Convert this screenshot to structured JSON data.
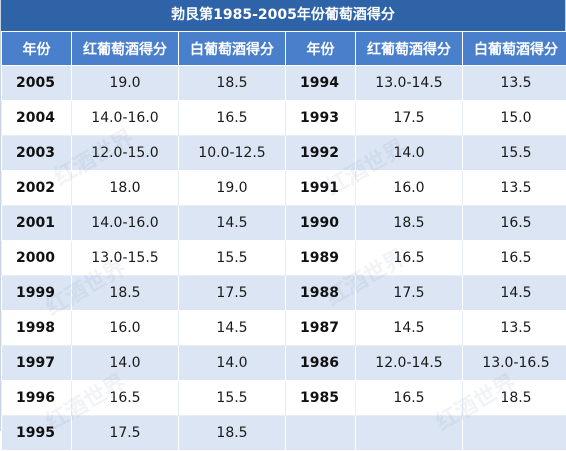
{
  "title": "勃艮第1985-2005年份葡萄酒得分",
  "headers": {
    "year": "年份",
    "red": "红葡萄酒得分",
    "white": "白葡萄酒得分"
  },
  "rows": [
    {
      "left": {
        "year": "2005",
        "red": "19.0",
        "white": "18.5"
      },
      "right": {
        "year": "1994",
        "red": "13.0-14.5",
        "white": "13.5"
      }
    },
    {
      "left": {
        "year": "2004",
        "red": "14.0-16.0",
        "white": "16.5"
      },
      "right": {
        "year": "1993",
        "red": "17.5",
        "white": "15.0"
      }
    },
    {
      "left": {
        "year": "2003",
        "red": "12.0-15.0",
        "white": "10.0-12.5"
      },
      "right": {
        "year": "1992",
        "red": "14.0",
        "white": "15.5"
      }
    },
    {
      "left": {
        "year": "2002",
        "red": "18.0",
        "white": "19.0"
      },
      "right": {
        "year": "1991",
        "red": "16.0",
        "white": "13.5"
      }
    },
    {
      "left": {
        "year": "2001",
        "red": "14.0-16.0",
        "white": "14.5"
      },
      "right": {
        "year": "1990",
        "red": "18.5",
        "white": "16.5"
      }
    },
    {
      "left": {
        "year": "2000",
        "red": "13.0-15.5",
        "white": "15.5"
      },
      "right": {
        "year": "1989",
        "red": "16.5",
        "white": "16.5"
      }
    },
    {
      "left": {
        "year": "1999",
        "red": "18.5",
        "white": "17.5"
      },
      "right": {
        "year": "1988",
        "red": "17.5",
        "white": "14.5"
      }
    },
    {
      "left": {
        "year": "1998",
        "red": "16.0",
        "white": "14.5"
      },
      "right": {
        "year": "1987",
        "red": "14.5",
        "white": "13.5"
      }
    },
    {
      "left": {
        "year": "1997",
        "red": "14.0",
        "white": "14.0"
      },
      "right": {
        "year": "1986",
        "red": "12.0-14.5",
        "white": "13.0-16.5"
      }
    },
    {
      "left": {
        "year": "1996",
        "red": "16.5",
        "white": "15.5"
      },
      "right": {
        "year": "1985",
        "red": "16.5",
        "white": "18.5"
      }
    },
    {
      "left": {
        "year": "1995",
        "red": "17.5",
        "white": "18.5"
      },
      "right": {
        "year": "",
        "red": "",
        "white": ""
      }
    }
  ],
  "watermark": "红酒世界",
  "colors": {
    "title_bg": "#2f63a8",
    "header_bg": "#4a7fcb",
    "stripe_bg": "#dbe5f3"
  }
}
